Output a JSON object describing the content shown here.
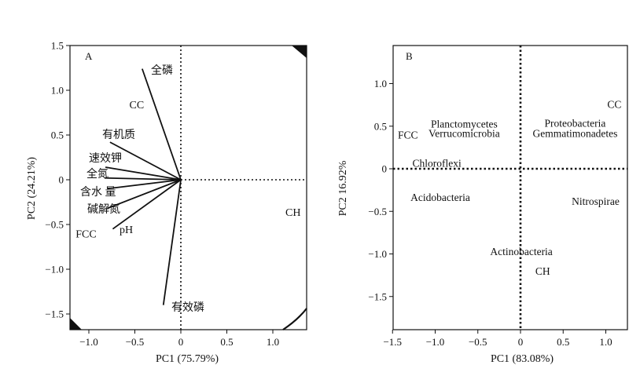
{
  "chart_data": [
    {
      "type": "scatter",
      "subtype": "biplot",
      "panel_label": "A",
      "xlabel": "PC1 (75.79%)",
      "ylabel": "PC2 (24.21%)",
      "xlim": [
        -1.2,
        1.4
      ],
      "ylim": [
        -1.65,
        1.5
      ],
      "xticks": [
        "−1.0",
        "−0.5",
        "0",
        "0.5",
        "1.0"
      ],
      "xtick_values": [
        -1.0,
        -0.5,
        0,
        0.5,
        1.0
      ],
      "yticks": [
        "1.5",
        "1.0",
        "0.5",
        "0",
        "−0.5",
        "−1.0",
        "−1.5"
      ],
      "ytick_values": [
        1.5,
        1.0,
        0.5,
        0,
        -0.5,
        -1.0,
        -1.5
      ],
      "reference_lines": "dotted at x=0 and y=0",
      "vectors": [
        {
          "name": "全磷",
          "x": -0.42,
          "y": 1.24
        },
        {
          "name": "有机质",
          "x": -0.77,
          "y": 0.42
        },
        {
          "name": "速效钾",
          "x": -0.82,
          "y": 0.14
        },
        {
          "name": "全氮",
          "x": -0.83,
          "y": 0.02
        },
        {
          "name": "含水 量",
          "x": -0.8,
          "y": -0.1
        },
        {
          "name": "碱解氮",
          "x": -0.8,
          "y": -0.32
        },
        {
          "name": "pH",
          "x": -0.74,
          "y": -0.55
        },
        {
          "name": "有效磷",
          "x": -0.19,
          "y": -1.4
        }
      ],
      "sites": [
        {
          "name": "CC",
          "x": -0.48,
          "y": 0.84
        },
        {
          "name": "FCC",
          "x": -1.03,
          "y": -0.6
        },
        {
          "name": "CH",
          "x": 1.22,
          "y": -0.36
        }
      ]
    },
    {
      "type": "scatter",
      "subtype": "biplot",
      "panel_label": "B",
      "xlabel": "PC1 (83.08%)",
      "ylabel": "PC2 16.92%",
      "xlim": [
        -1.5,
        1.25
      ],
      "ylim": [
        -1.9,
        1.45
      ],
      "xticks": [
        "−1.5",
        "−1.0",
        "−0.5",
        "0",
        "0.5",
        "1.0"
      ],
      "xtick_values": [
        -1.5,
        -1.0,
        -0.5,
        0,
        0.5,
        1.0
      ],
      "yticks": [
        "1.0",
        "0.5",
        "0",
        "−0.5",
        "−1.0",
        "−1.5"
      ],
      "ytick_values": [
        1.0,
        0.5,
        0,
        -0.5,
        -1.0,
        -1.5
      ],
      "reference_lines": "dotted at x=0 and y=0",
      "labels": [
        {
          "name": "CC",
          "x": 1.1,
          "y": 0.76
        },
        {
          "name": "FCC",
          "x": -1.32,
          "y": 0.4
        },
        {
          "name": "CH",
          "x": 0.26,
          "y": -1.2
        },
        {
          "name": "Planctomycetes",
          "x": -0.66,
          "y": 0.53
        },
        {
          "name": "Verrucomicrobia",
          "x": -0.66,
          "y": 0.42
        },
        {
          "name": "Proteobacteria",
          "x": 0.64,
          "y": 0.54
        },
        {
          "name": "Gemmatimonadetes",
          "x": 0.64,
          "y": 0.42
        },
        {
          "name": "Chloroflexi",
          "x": -0.98,
          "y": 0.07
        },
        {
          "name": "Acidobacteria",
          "x": -0.94,
          "y": -0.33
        },
        {
          "name": "Nitrospirae",
          "x": 0.88,
          "y": -0.38
        },
        {
          "name": "Actinobacteria",
          "x": 0.01,
          "y": -0.97
        }
      ]
    }
  ]
}
